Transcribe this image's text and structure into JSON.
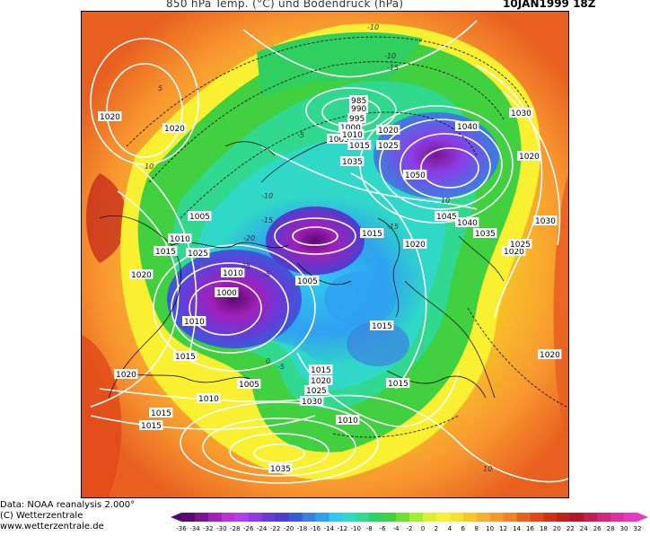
{
  "header": {
    "title": "850 hPa Temp. (°C) und Bodendruck (hPa)",
    "datestamp": "10JAN1999 18Z"
  },
  "footer": {
    "line1": "Data: NOAA reanalysis 2.000°",
    "line2": "(C) Wetterzentrale",
    "line3": "www.wetterzentrale.de"
  },
  "colorbar": {
    "ticks": [
      "-36",
      "-34",
      "-32",
      "-30",
      "-28",
      "-26",
      "-24",
      "-22",
      "-20",
      "-18",
      "-16",
      "-14",
      "-12",
      "-10",
      "-8",
      "-6",
      "-4",
      "-2",
      "0",
      "2",
      "4",
      "6",
      "8",
      "10",
      "12",
      "14",
      "16",
      "18",
      "20",
      "22",
      "24",
      "26",
      "28",
      "30",
      "32"
    ],
    "colors": [
      "#5a0a6e",
      "#7a1590",
      "#a020b8",
      "#c030d8",
      "#b040e8",
      "#8c3ce6",
      "#6a3ad8",
      "#4a40d0",
      "#3a5ad8",
      "#3a80e0",
      "#30a0f0",
      "#30c8f0",
      "#30d8c8",
      "#30d890",
      "#30d060",
      "#40d040",
      "#70e030",
      "#a0f030",
      "#d8f030",
      "#f8f030",
      "#f8e030",
      "#f8c828",
      "#f8b030",
      "#f89830",
      "#f08028",
      "#e86020",
      "#e04818",
      "#d03018",
      "#c02018",
      "#b01828",
      "#c02050",
      "#d02878",
      "#e030a0",
      "#e838c0"
    ]
  },
  "map": {
    "type": "temperature and surface pressure analysis",
    "pressure_labels": [
      {
        "text": "1020"
      },
      {
        "text": "1020"
      },
      {
        "text": "1005"
      },
      {
        "text": "1010"
      },
      {
        "text": "1015"
      },
      {
        "text": "1025"
      },
      {
        "text": "1020"
      },
      {
        "text": "1010"
      },
      {
        "text": "1000"
      },
      {
        "text": "1005"
      },
      {
        "text": "1010"
      },
      {
        "text": "1015"
      },
      {
        "text": "1020"
      },
      {
        "text": "1010"
      },
      {
        "text": "1015"
      },
      {
        "text": "1005"
      },
      {
        "text": "1015"
      },
      {
        "text": "1020"
      },
      {
        "text": "1025"
      },
      {
        "text": "1030"
      },
      {
        "text": "1010"
      },
      {
        "text": "1035"
      },
      {
        "text": "1015"
      },
      {
        "text": "1015"
      },
      {
        "text": "1015"
      },
      {
        "text": "1020"
      },
      {
        "text": "985"
      },
      {
        "text": "990"
      },
      {
        "text": "995"
      },
      {
        "text": "1000"
      },
      {
        "text": "1005"
      },
      {
        "text": "1010"
      },
      {
        "text": "1015"
      },
      {
        "text": "1035"
      },
      {
        "text": "1020"
      },
      {
        "text": "1025"
      },
      {
        "text": "1040"
      },
      {
        "text": "1050"
      },
      {
        "text": "1045"
      },
      {
        "text": "1040"
      },
      {
        "text": "1035"
      },
      {
        "text": "1030"
      },
      {
        "text": "1020"
      },
      {
        "text": "1030"
      },
      {
        "text": "1025"
      },
      {
        "text": "1020"
      },
      {
        "text": "1020"
      },
      {
        "text": "1015"
      }
    ],
    "temperature_labels": [
      {
        "text": "-10"
      },
      {
        "text": "5"
      },
      {
        "text": "10"
      },
      {
        "text": "-10"
      },
      {
        "text": "-15"
      },
      {
        "text": "-15"
      },
      {
        "text": "-5"
      },
      {
        "text": "0"
      },
      {
        "text": "-5"
      },
      {
        "text": "-10"
      },
      {
        "text": "-15"
      },
      {
        "text": "-20"
      },
      {
        "text": "-25"
      },
      {
        "text": "10"
      },
      {
        "text": "-5"
      },
      {
        "text": "10"
      }
    ]
  }
}
